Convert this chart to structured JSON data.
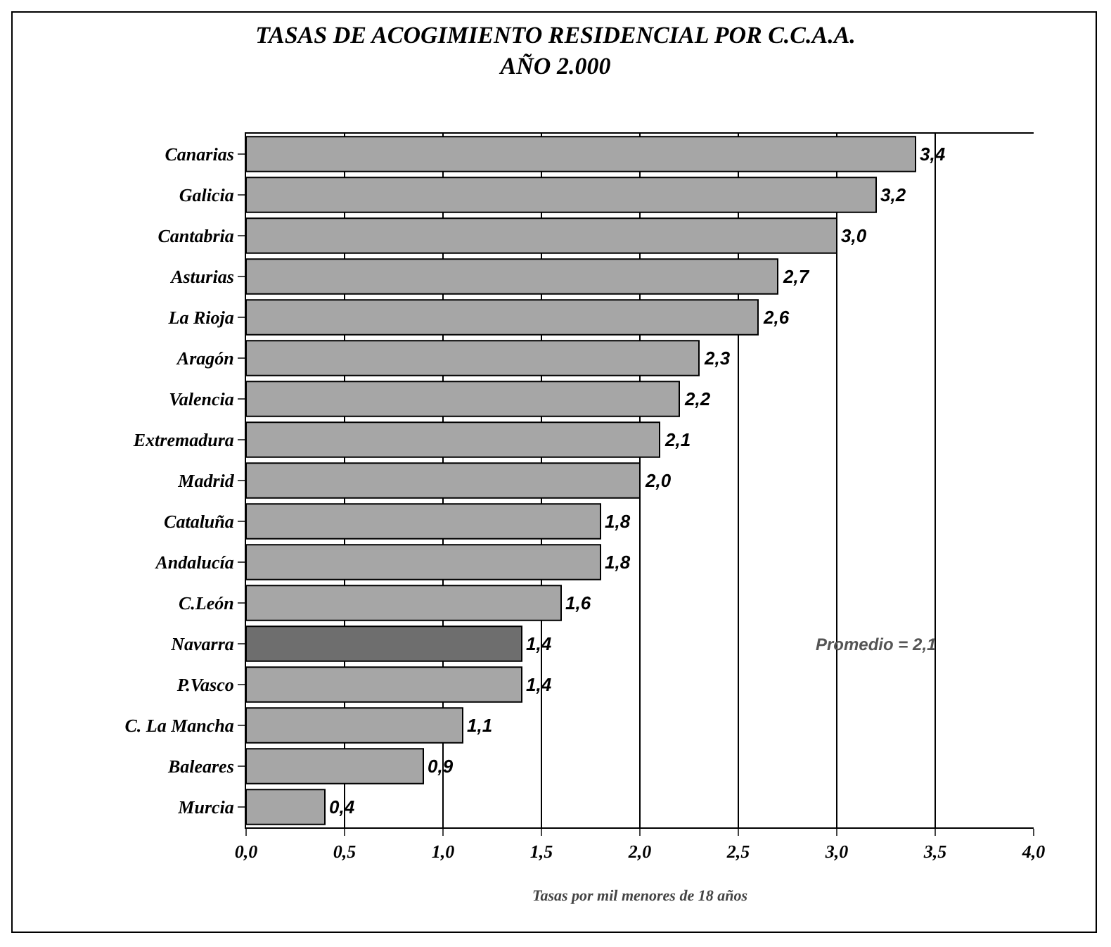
{
  "chart_data": {
    "type": "bar",
    "orientation": "horizontal",
    "title": "TASAS DE ACOGIMIENTO RESIDENCIAL POR C.C.A.A.\nAÑO 2.000",
    "xlabel": "Tasas por mil menores de 18 años",
    "categories": [
      "Canarias",
      "Galicia",
      "Cantabria",
      "Asturias",
      "La Rioja",
      "Aragón",
      "Valencia",
      "Extremadura",
      "Madrid",
      "Cataluña",
      "Andalucía",
      "C.León",
      "Navarra",
      "P.Vasco",
      "C. La Mancha",
      "Baleares",
      "Murcia"
    ],
    "values": [
      3.4,
      3.2,
      3.0,
      2.7,
      2.6,
      2.3,
      2.2,
      2.1,
      2.0,
      1.8,
      1.8,
      1.6,
      1.4,
      1.4,
      1.1,
      0.9,
      0.4
    ],
    "value_labels": [
      "3,4",
      "3,2",
      "3,0",
      "2,7",
      "2,6",
      "2,3",
      "2,2",
      "2,1",
      "2,0",
      "1,8",
      "1,8",
      "1,6",
      "1,4",
      "1,4",
      "1,1",
      "0,9",
      "0,4"
    ],
    "colors": [
      "#a6a6a6",
      "#a6a6a6",
      "#a6a6a6",
      "#a6a6a6",
      "#a6a6a6",
      "#a6a6a6",
      "#a6a6a6",
      "#a6a6a6",
      "#a6a6a6",
      "#a6a6a6",
      "#a6a6a6",
      "#a6a6a6",
      "#6e6e6e",
      "#a6a6a6",
      "#a6a6a6",
      "#a6a6a6",
      "#a6a6a6"
    ],
    "xlim": [
      0,
      4
    ],
    "xticks": [
      {
        "value": 0,
        "label": "0,0"
      },
      {
        "value": 0.5,
        "label": "0,5"
      },
      {
        "value": 1,
        "label": "1,0"
      },
      {
        "value": 1.5,
        "label": "1,5"
      },
      {
        "value": 2,
        "label": "2,0"
      },
      {
        "value": 2.5,
        "label": "2,5"
      },
      {
        "value": 3,
        "label": "3,0"
      },
      {
        "value": 3.5,
        "label": "3,5"
      },
      {
        "value": 4,
        "label": "4,0"
      }
    ],
    "grid": "x",
    "annotations": [
      "Promedio = 2,1"
    ]
  }
}
